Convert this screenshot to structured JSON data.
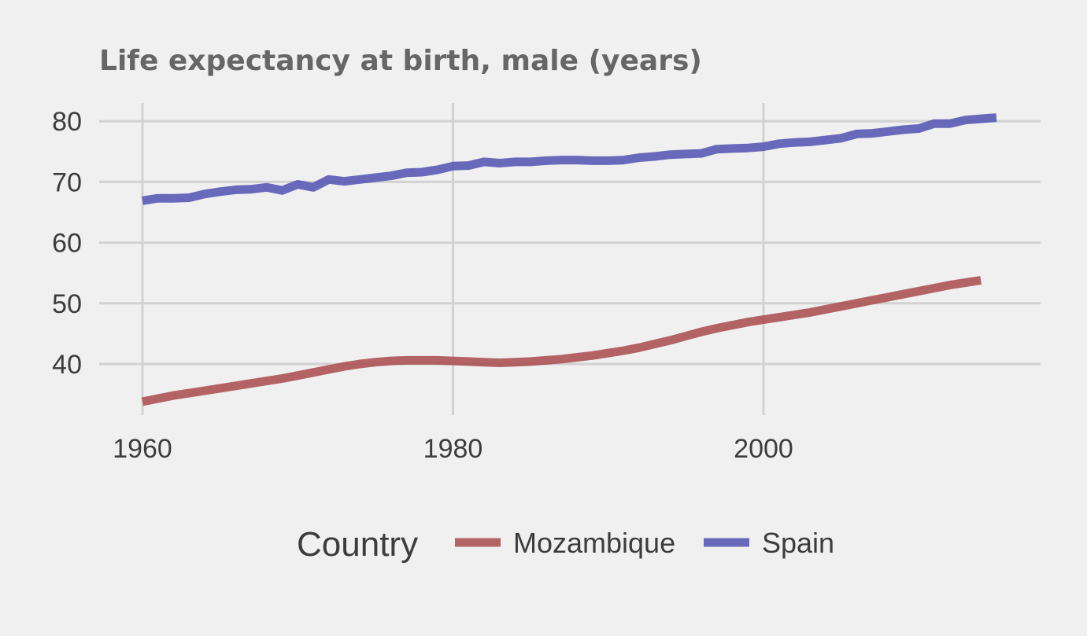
{
  "chart_data": {
    "type": "line",
    "title": "Life expectancy at birth, male (years)",
    "xlabel": "",
    "ylabel": "",
    "xlim": [
      1960,
      2017
    ],
    "ylim": [
      31.5,
      83
    ],
    "x_ticks": [
      1960,
      1980,
      2000
    ],
    "y_ticks": [
      40,
      50,
      60,
      70,
      80
    ],
    "grid": true,
    "legend": {
      "title": "Country",
      "position": "bottom"
    },
    "series": [
      {
        "name": "Mozambique",
        "color": "#aa4f50",
        "x": [
          1960,
          1961,
          1962,
          1963,
          1964,
          1965,
          1966,
          1967,
          1968,
          1969,
          1970,
          1971,
          1972,
          1973,
          1974,
          1975,
          1976,
          1977,
          1978,
          1979,
          1980,
          1981,
          1982,
          1983,
          1984,
          1985,
          1986,
          1987,
          1988,
          1989,
          1990,
          1991,
          1992,
          1993,
          1994,
          1995,
          1996,
          1997,
          1998,
          1999,
          2000,
          2001,
          2002,
          2003,
          2004,
          2005,
          2006,
          2007,
          2008,
          2009,
          2010,
          2011,
          2012,
          2013,
          2014
        ],
        "values": [
          33.8,
          34.3,
          34.8,
          35.2,
          35.6,
          36.0,
          36.4,
          36.8,
          37.2,
          37.6,
          38.1,
          38.6,
          39.1,
          39.6,
          40.0,
          40.3,
          40.5,
          40.6,
          40.6,
          40.6,
          40.5,
          40.4,
          40.3,
          40.2,
          40.3,
          40.4,
          40.6,
          40.8,
          41.1,
          41.4,
          41.8,
          42.2,
          42.7,
          43.3,
          43.9,
          44.6,
          45.3,
          45.9,
          46.4,
          46.9,
          47.3,
          47.7,
          48.1,
          48.5,
          49.0,
          49.5,
          50.0,
          50.5,
          51.0,
          51.5,
          52.0,
          52.5,
          53.0,
          53.4,
          53.8
        ]
      },
      {
        "name": "Spain",
        "color": "#5555b3",
        "x": [
          1960,
          1961,
          1962,
          1963,
          1964,
          1965,
          1966,
          1967,
          1968,
          1969,
          1970,
          1971,
          1972,
          1973,
          1974,
          1975,
          1976,
          1977,
          1978,
          1979,
          1980,
          1981,
          1982,
          1983,
          1984,
          1985,
          1986,
          1987,
          1988,
          1989,
          1990,
          1991,
          1992,
          1993,
          1994,
          1995,
          1996,
          1997,
          1998,
          1999,
          2000,
          2001,
          2002,
          2003,
          2004,
          2005,
          2006,
          2007,
          2008,
          2009,
          2010,
          2011,
          2012,
          2013,
          2014,
          2015
        ],
        "values": [
          66.9,
          67.3,
          67.3,
          67.4,
          68.0,
          68.4,
          68.7,
          68.8,
          69.1,
          68.6,
          69.6,
          69.1,
          70.4,
          70.1,
          70.4,
          70.7,
          71.0,
          71.5,
          71.6,
          72.0,
          72.6,
          72.7,
          73.3,
          73.1,
          73.3,
          73.3,
          73.5,
          73.6,
          73.6,
          73.5,
          73.5,
          73.6,
          74.0,
          74.2,
          74.5,
          74.6,
          74.7,
          75.4,
          75.5,
          75.6,
          75.8,
          76.3,
          76.5,
          76.6,
          76.9,
          77.2,
          77.9,
          78.0,
          78.3,
          78.6,
          78.8,
          79.6,
          79.6,
          80.2,
          80.4,
          80.6
        ]
      }
    ]
  }
}
